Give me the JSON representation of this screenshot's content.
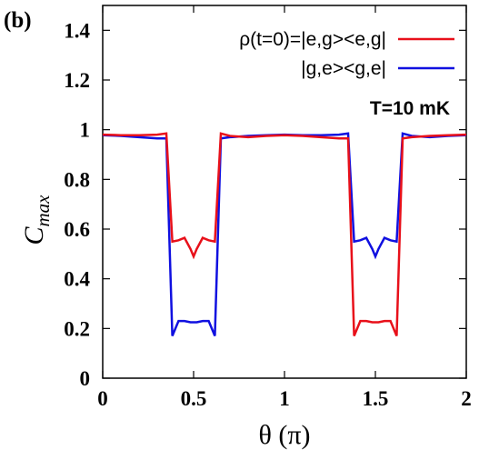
{
  "chart_data": {
    "type": "line",
    "panel_label": "(b)",
    "xlabel": "θ (π)",
    "ylabel_main": "C",
    "ylabel_sub": "max",
    "xlim": [
      0,
      2
    ],
    "ylim": [
      0,
      1.5
    ],
    "xticks": [
      0,
      0.5,
      1,
      1.5,
      2
    ],
    "xtick_labels": [
      "0",
      "0.5",
      "1",
      "1.5",
      "2"
    ],
    "yticks": [
      0,
      0.2,
      0.4,
      0.6,
      0.8,
      1,
      1.2,
      1.4
    ],
    "ytick_labels": [
      "0",
      "0.2",
      "0.4",
      "0.6",
      "0.8",
      "1",
      "1.2",
      "1.4"
    ],
    "annotation": "T=10 mK",
    "legend_position": "top-right",
    "colors": {
      "red": "#e8101a",
      "blue": "#1010e0"
    },
    "series": [
      {
        "name": "ρ(t=0)=|e,g><e,g|",
        "color": "#e8101a",
        "x": [
          0,
          0.1,
          0.2,
          0.3,
          0.35,
          0.383,
          0.417,
          0.45,
          0.483,
          0.5,
          0.517,
          0.55,
          0.583,
          0.617,
          0.65,
          0.7,
          0.8,
          0.9,
          1.0,
          1.1,
          1.2,
          1.3,
          1.35,
          1.383,
          1.417,
          1.45,
          1.483,
          1.5,
          1.517,
          1.55,
          1.583,
          1.617,
          1.65,
          1.7,
          1.8,
          1.9,
          2.0
        ],
        "y": [
          0.98,
          0.978,
          0.978,
          0.98,
          0.985,
          0.55,
          0.555,
          0.565,
          0.52,
          0.49,
          0.52,
          0.565,
          0.555,
          0.55,
          0.985,
          0.975,
          0.97,
          0.975,
          0.978,
          0.975,
          0.97,
          0.965,
          0.965,
          0.17,
          0.23,
          0.23,
          0.225,
          0.225,
          0.225,
          0.23,
          0.23,
          0.17,
          0.965,
          0.97,
          0.975,
          0.978,
          0.98
        ]
      },
      {
        "name": "|g,e><g,e|",
        "color": "#1010e0",
        "x": [
          0,
          0.1,
          0.2,
          0.3,
          0.35,
          0.383,
          0.417,
          0.45,
          0.483,
          0.5,
          0.517,
          0.55,
          0.583,
          0.617,
          0.65,
          0.7,
          0.8,
          0.9,
          1.0,
          1.1,
          1.2,
          1.3,
          1.35,
          1.383,
          1.417,
          1.45,
          1.483,
          1.5,
          1.517,
          1.55,
          1.583,
          1.617,
          1.65,
          1.7,
          1.8,
          1.9,
          2.0
        ],
        "y": [
          0.978,
          0.975,
          0.97,
          0.965,
          0.965,
          0.17,
          0.23,
          0.23,
          0.225,
          0.225,
          0.225,
          0.23,
          0.23,
          0.17,
          0.965,
          0.97,
          0.975,
          0.978,
          0.98,
          0.978,
          0.978,
          0.98,
          0.985,
          0.55,
          0.555,
          0.565,
          0.52,
          0.49,
          0.52,
          0.565,
          0.555,
          0.55,
          0.985,
          0.975,
          0.97,
          0.975,
          0.978
        ]
      }
    ]
  }
}
